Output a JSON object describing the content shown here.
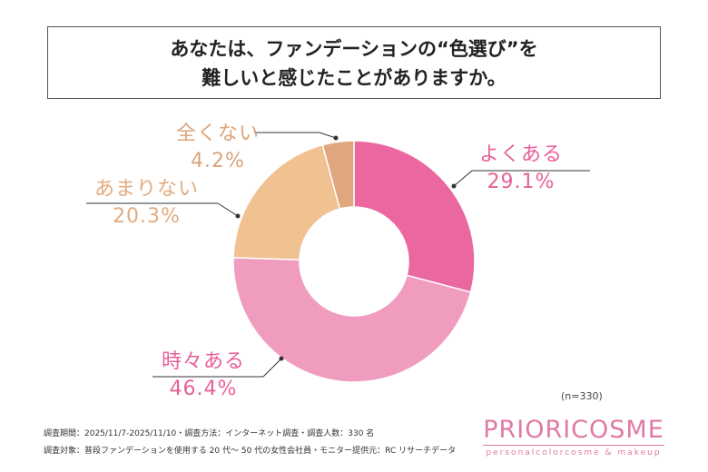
{
  "title_line1": "あなたは、ファンデーションの“色選び”を",
  "title_line2": "難しいと感じたことがありますか。",
  "chart_data": {
    "type": "pie",
    "donut": true,
    "categories": [
      "よくある",
      "時々ある",
      "あまりない",
      "全くない"
    ],
    "values": [
      29.1,
      46.4,
      20.3,
      4.2
    ],
    "value_labels": [
      "29.1%",
      "46.4%",
      "20.3%",
      "4.2%"
    ],
    "colors": [
      "#ea67a0",
      "#f09cbf",
      "#f0c191",
      "#e0a77e"
    ],
    "label_colors": [
      "#e8609b",
      "#e8609b",
      "#e2ac80",
      "#d9a57c"
    ]
  },
  "sample": "(n=330)",
  "footnote1": "調査期間：2025/11/7-2025/11/10・調査方法：インターネット調査・調査人数：330 名",
  "footnote2": "調査対象：普段ファンデーションを使用する 20 代～ 50 代の女性会社員・モニター提供元：RC リサーチデータ",
  "logo": {
    "brand": "PRIORICOSME",
    "tagline": "personalcolorcosme & makeup"
  }
}
